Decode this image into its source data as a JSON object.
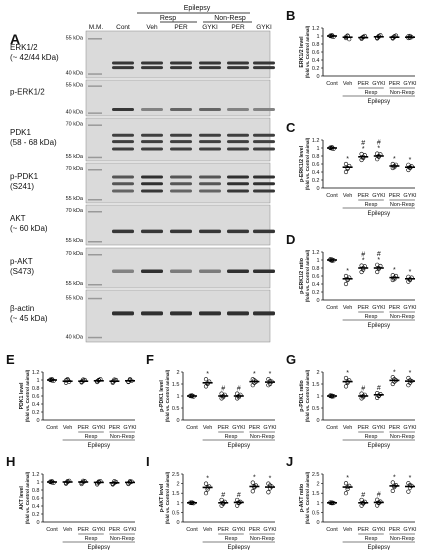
{
  "panel_letters": {
    "A": "A",
    "B": "B",
    "C": "C",
    "D": "D",
    "E": "E",
    "F": "F",
    "G": "G",
    "H": "H",
    "I": "I",
    "J": "J"
  },
  "blot": {
    "lane_labels": [
      "M.M.",
      "Cont",
      "Veh",
      "PER",
      "GYKI",
      "PER",
      "GYKI"
    ],
    "epilepsy_label": "Epilepsy",
    "resp_label": "Resp",
    "nonresp_label": "Non-Resp",
    "rows": [
      {
        "name_lines": [
          "ERK1/2",
          "(~ 42/44 kDa)"
        ],
        "markers": [
          "55 kDa",
          "40 kDa"
        ]
      },
      {
        "name_lines": [
          "p-ERK1/2"
        ],
        "markers": [
          "55 kDa",
          "40 kDa"
        ]
      },
      {
        "name_lines": [
          "PDK1",
          "(58 - 68 kDa)"
        ],
        "markers": [
          "70 kDa",
          "55 kDa"
        ]
      },
      {
        "name_lines": [
          "p-PDK1",
          "(S241)"
        ],
        "markers": [
          "70 kDa",
          "55 kDa"
        ]
      },
      {
        "name_lines": [
          "AKT",
          "(~ 60 kDa)"
        ],
        "markers": [
          "70 kDa",
          "55 kDa"
        ]
      },
      {
        "name_lines": [
          "p-AKT",
          "(S473)"
        ],
        "markers": [
          "70 kDa",
          "55 kDa"
        ]
      },
      {
        "name_lines": [
          "β-actin",
          "(~ 45 kDa)"
        ],
        "markers": [
          "55 kDa",
          "40 kDa"
        ]
      }
    ]
  },
  "chart_data": [
    {
      "id": "B",
      "type": "scatter",
      "ylabel": "ERK1/2 level",
      "ylabel2": "(fold vs. Control animal)",
      "yticks": [
        "0",
        "0.2",
        "0.4",
        "0.6",
        "0.8",
        "1",
        "1.2"
      ],
      "ylim": [
        0,
        1.2
      ],
      "categories": [
        "Cont",
        "Veh",
        "PER",
        "GYKI",
        "PER",
        "GYKI"
      ],
      "group_labels": {
        "resp": "Resp",
        "nonresp": "Non-Resp",
        "epilepsy": "Epilepsy"
      },
      "means": [
        1.0,
        0.97,
        0.96,
        0.98,
        0.97,
        0.97
      ],
      "points": [
        [
          1.0,
          1.02,
          0.98,
          1.01,
          0.99
        ],
        [
          0.95,
          1.0,
          0.92,
          0.98,
          1.01
        ],
        [
          0.93,
          0.98,
          1.0,
          0.95,
          0.97
        ],
        [
          0.96,
          1.0,
          1.02,
          0.94,
          0.98
        ],
        [
          0.94,
          0.99,
          1.01,
          0.96,
          0.98
        ],
        [
          0.95,
          1.0,
          0.97,
          0.99,
          0.96
        ]
      ],
      "marks": [
        "",
        "",
        "",
        "",
        "",
        ""
      ]
    },
    {
      "id": "C",
      "type": "scatter",
      "ylabel": "p-ERK1/2 level",
      "ylabel2": "(fold vs. Control animal)",
      "yticks": [
        "0",
        "0.2",
        "0.4",
        "0.6",
        "0.8",
        "1",
        "1.2"
      ],
      "ylim": [
        0,
        1.2
      ],
      "categories": [
        "Cont",
        "Veh",
        "PER",
        "GYKI",
        "PER",
        "GYKI"
      ],
      "group_labels": {
        "resp": "Resp",
        "nonresp": "Non-Resp",
        "epilepsy": "Epilepsy"
      },
      "means": [
        1.0,
        0.52,
        0.78,
        0.8,
        0.55,
        0.52
      ],
      "points": [
        [
          1.0,
          1.02,
          0.98,
          1.01,
          0.99
        ],
        [
          0.4,
          0.5,
          0.55,
          0.6,
          0.48
        ],
        [
          0.7,
          0.78,
          0.82,
          0.85,
          0.75
        ],
        [
          0.72,
          0.8,
          0.84,
          0.86,
          0.78
        ],
        [
          0.5,
          0.55,
          0.58,
          0.6,
          0.52
        ],
        [
          0.45,
          0.5,
          0.54,
          0.58,
          0.52
        ]
      ],
      "marks": [
        "",
        "*",
        "#\n*",
        "#\n*",
        "*",
        "*"
      ]
    },
    {
      "id": "D",
      "type": "scatter",
      "ylabel": "p-ERK1/2 ratio",
      "ylabel2": "(fold vs. Control animal)",
      "yticks": [
        "0",
        "0.2",
        "0.4",
        "0.6",
        "0.8",
        "1",
        "1.2"
      ],
      "ylim": [
        0,
        1.2
      ],
      "categories": [
        "Cont",
        "Veh",
        "PER",
        "GYKI",
        "PER",
        "GYKI"
      ],
      "group_labels": {
        "resp": "Resp",
        "nonresp": "Non-Resp",
        "epilepsy": "Epilepsy"
      },
      "means": [
        1.0,
        0.53,
        0.8,
        0.8,
        0.56,
        0.53
      ],
      "points": [
        [
          1.0,
          1.01,
          0.99,
          1.02,
          0.98
        ],
        [
          0.4,
          0.52,
          0.56,
          0.6,
          0.5
        ],
        [
          0.7,
          0.8,
          0.84,
          0.86,
          0.76
        ],
        [
          0.7,
          0.8,
          0.85,
          0.88,
          0.78
        ],
        [
          0.5,
          0.56,
          0.6,
          0.62,
          0.52
        ],
        [
          0.46,
          0.52,
          0.56,
          0.58,
          0.5
        ]
      ],
      "marks": [
        "",
        "*",
        "#\n*",
        "#\n*",
        "*",
        "*"
      ]
    },
    {
      "id": "E",
      "type": "scatter",
      "ylabel": "PDK1 level",
      "ylabel2": "(fold vs. Control animal)",
      "yticks": [
        "0",
        "0.2",
        "0.4",
        "0.6",
        "0.8",
        "1",
        "1.2"
      ],
      "ylim": [
        0,
        1.2
      ],
      "categories": [
        "Cont",
        "Veh",
        "PER",
        "GYKI",
        "PER",
        "GYKI"
      ],
      "group_labels": {
        "resp": "Resp",
        "nonresp": "Non-Resp",
        "epilepsy": "Epilepsy"
      },
      "means": [
        1.0,
        0.97,
        0.97,
        0.98,
        0.97,
        0.98
      ],
      "points": [
        [
          1.0,
          1.02,
          0.98,
          1.01,
          0.99
        ],
        [
          0.93,
          1.0,
          0.96,
          0.99,
          1.02
        ],
        [
          0.94,
          0.98,
          1.0,
          0.96,
          1.01
        ],
        [
          0.95,
          0.99,
          1.02,
          0.97,
          1.0
        ],
        [
          0.93,
          0.98,
          1.0,
          0.96,
          1.01
        ],
        [
          0.95,
          1.0,
          0.98,
          0.96,
          1.02
        ]
      ],
      "marks": [
        "",
        "",
        "",
        "",
        "",
        ""
      ]
    },
    {
      "id": "F",
      "type": "scatter",
      "ylabel": "p-PDK1 level",
      "ylabel2": "(fold vs. Control animal)",
      "yticks": [
        "0",
        "0.5",
        "1",
        "1.5",
        "2"
      ],
      "ylim": [
        0,
        2
      ],
      "categories": [
        "Cont",
        "Veh",
        "PER",
        "GYKI",
        "PER",
        "GYKI"
      ],
      "group_labels": {
        "resp": "Resp",
        "nonresp": "Non-Resp",
        "epilepsy": "Epilepsy"
      },
      "means": [
        1.0,
        1.55,
        1.0,
        1.0,
        1.6,
        1.58
      ],
      "points": [
        [
          1.0,
          1.02,
          0.98,
          1.01,
          0.99
        ],
        [
          1.4,
          1.5,
          1.6,
          1.7,
          1.55
        ],
        [
          0.9,
          1.0,
          1.05,
          1.1,
          0.95
        ],
        [
          0.9,
          1.0,
          1.05,
          1.1,
          0.95
        ],
        [
          1.45,
          1.55,
          1.6,
          1.7,
          1.65
        ],
        [
          1.45,
          1.5,
          1.6,
          1.7,
          1.62
        ]
      ],
      "marks": [
        "",
        "*",
        "#",
        "#",
        "*",
        "*"
      ]
    },
    {
      "id": "G",
      "type": "scatter",
      "ylabel": "p-PDK1 ratio",
      "ylabel2": "(fold vs. Control animal)",
      "yticks": [
        "0",
        "0.5",
        "1",
        "1.5",
        "2"
      ],
      "ylim": [
        0,
        2
      ],
      "categories": [
        "Cont",
        "Veh",
        "PER",
        "GYKI",
        "PER",
        "GYKI"
      ],
      "group_labels": {
        "resp": "Resp",
        "nonresp": "Non-Resp",
        "epilepsy": "Epilepsy"
      },
      "means": [
        1.0,
        1.6,
        1.0,
        1.05,
        1.65,
        1.62
      ],
      "points": [
        [
          1.0,
          1.01,
          0.99,
          1.02,
          0.98
        ],
        [
          1.4,
          1.55,
          1.65,
          1.75,
          1.6
        ],
        [
          0.9,
          1.0,
          1.05,
          1.1,
          0.95
        ],
        [
          0.92,
          1.02,
          1.08,
          1.12,
          1.0
        ],
        [
          1.5,
          1.6,
          1.65,
          1.78,
          1.7
        ],
        [
          1.45,
          1.55,
          1.62,
          1.75,
          1.65
        ]
      ],
      "marks": [
        "",
        "*",
        "#",
        "#",
        "*",
        "*"
      ]
    },
    {
      "id": "H",
      "type": "scatter",
      "ylabel": "AKT level",
      "ylabel2": "(fold vs. Control animal)",
      "yticks": [
        "0",
        "0.2",
        "0.4",
        "0.6",
        "0.8",
        "1",
        "1.2"
      ],
      "ylim": [
        0,
        1.2
      ],
      "categories": [
        "Cont",
        "Veh",
        "PER",
        "GYKI",
        "PER",
        "GYKI"
      ],
      "group_labels": {
        "resp": "Resp",
        "nonresp": "Non-Resp",
        "epilepsy": "Epilepsy"
      },
      "means": [
        1.0,
        1.0,
        1.0,
        0.99,
        0.98,
        0.99
      ],
      "points": [
        [
          1.0,
          1.02,
          0.98,
          1.01,
          0.99
        ],
        [
          0.96,
          1.0,
          1.03,
          0.98,
          1.02
        ],
        [
          0.95,
          1.0,
          1.02,
          0.98,
          1.03
        ],
        [
          0.94,
          0.99,
          1.02,
          0.97,
          1.01
        ],
        [
          0.94,
          0.98,
          1.0,
          0.96,
          1.02
        ],
        [
          0.95,
          0.99,
          1.01,
          0.97,
          1.02
        ]
      ],
      "marks": [
        "",
        "",
        "",
        "",
        "",
        ""
      ]
    },
    {
      "id": "I",
      "type": "scatter",
      "ylabel": "p-AKT level",
      "ylabel2": "(fold vs. Control animal)",
      "yticks": [
        "0",
        "0.5",
        "1",
        "1.5",
        "2",
        "2.5"
      ],
      "ylim": [
        0,
        2.5
      ],
      "categories": [
        "Cont",
        "Veh",
        "PER",
        "GYKI",
        "PER",
        "GYKI"
      ],
      "group_labels": {
        "resp": "Resp",
        "nonresp": "Non-Resp",
        "epilepsy": "Epilepsy"
      },
      "means": [
        1.0,
        1.8,
        1.0,
        1.02,
        1.85,
        1.82
      ],
      "points": [
        [
          1.0,
          1.02,
          0.98,
          1.01,
          0.99
        ],
        [
          1.5,
          1.7,
          1.85,
          2.0,
          1.8
        ],
        [
          0.85,
          0.95,
          1.05,
          1.15,
          1.0
        ],
        [
          0.85,
          0.98,
          1.05,
          1.15,
          1.02
        ],
        [
          1.6,
          1.8,
          1.9,
          2.05,
          1.85
        ],
        [
          1.55,
          1.75,
          1.85,
          2.0,
          1.9
        ]
      ],
      "marks": [
        "",
        "*",
        "#",
        "#",
        "*",
        "*"
      ]
    },
    {
      "id": "J",
      "type": "scatter",
      "ylabel": "p-AKT ratio",
      "ylabel2": "(fold vs. Control animal)",
      "yticks": [
        "0",
        "0.5",
        "1",
        "1.5",
        "2",
        "2.5"
      ],
      "ylim": [
        0,
        2.5
      ],
      "categories": [
        "Cont",
        "Veh",
        "PER",
        "GYKI",
        "PER",
        "GYKI"
      ],
      "group_labels": {
        "resp": "Resp",
        "nonresp": "Non-Resp",
        "epilepsy": "Epilepsy"
      },
      "means": [
        1.0,
        1.82,
        1.0,
        1.02,
        1.88,
        1.85
      ],
      "points": [
        [
          1.0,
          1.01,
          0.99,
          1.02,
          0.98
        ],
        [
          1.5,
          1.72,
          1.88,
          2.02,
          1.82
        ],
        [
          0.85,
          0.96,
          1.05,
          1.15,
          1.0
        ],
        [
          0.86,
          0.98,
          1.06,
          1.16,
          1.02
        ],
        [
          1.62,
          1.82,
          1.92,
          2.06,
          1.88
        ],
        [
          1.58,
          1.78,
          1.88,
          2.02,
          1.92
        ]
      ],
      "marks": [
        "",
        "*",
        "#",
        "#",
        "*",
        "*"
      ]
    }
  ]
}
